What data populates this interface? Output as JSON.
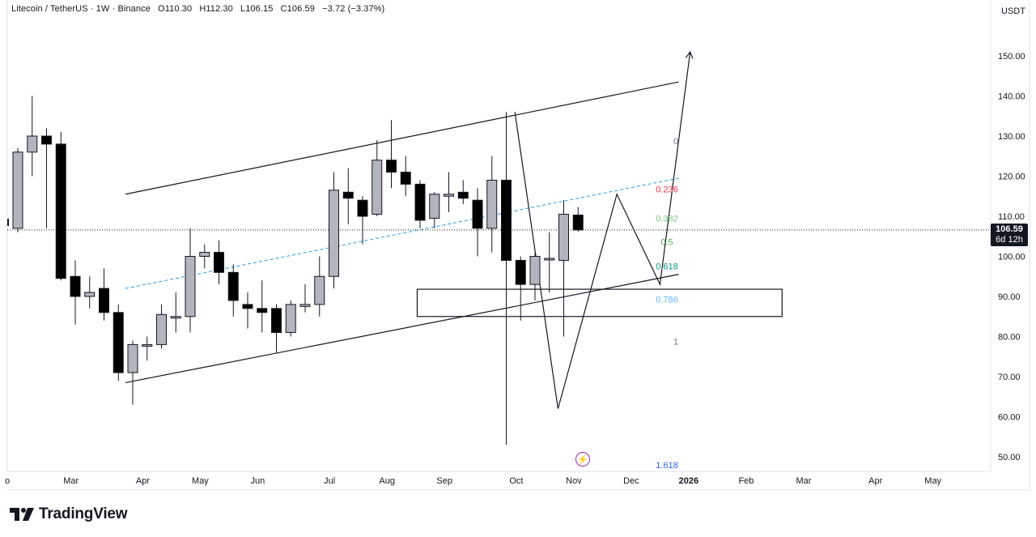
{
  "header": {
    "symbol": "Litecoin / TetherUS · 1W · Binance",
    "open": "O110.30",
    "high": "H112.30",
    "low": "L106.15",
    "close": "C106.59",
    "change": "−3.72 (−3.37%)"
  },
  "currency": "USDT",
  "price_tag": {
    "price": "106.59",
    "countdown": "6d 12h"
  },
  "brand": "TradingView",
  "colors": {
    "bull": "#b2b5be",
    "bear": "#000000",
    "line": "#131722",
    "dashed": "#2196f3",
    "fib_0": "#787b86",
    "fib_236": "#f23645",
    "fib_382": "#81c784",
    "fib_5": "#4caf50",
    "fib_618": "#089981",
    "fib_786": "#64b5f6",
    "fib_1": "#787b86",
    "fib_1618": "#2962ff",
    "flash": "#9c27b0"
  },
  "chart_data": {
    "type": "candlestick",
    "y_axis": {
      "min": 45,
      "max": 158,
      "ticks": [
        "50.00",
        "60.00",
        "70.00",
        "80.00",
        "90.00",
        "100.00",
        "110.00",
        "120.00",
        "130.00",
        "140.00",
        "150.00"
      ]
    },
    "x_axis": {
      "ticks": [
        {
          "label": "Mar",
          "week": 3.7
        },
        {
          "label": "Apr",
          "week": 8.7
        },
        {
          "label": "May",
          "week": 12.7
        },
        {
          "label": "Jun",
          "week": 16.7
        },
        {
          "label": "Jul",
          "week": 21.7
        },
        {
          "label": "Aug",
          "week": 25.7
        },
        {
          "label": "Sep",
          "week": 29.7
        },
        {
          "label": "Oct",
          "week": 34.7
        },
        {
          "label": "Nov",
          "week": 38.7
        },
        {
          "label": "Dec",
          "week": 42.7
        },
        {
          "label": "2026",
          "week": 46.7
        },
        {
          "label": "Feb",
          "week": 50.7
        },
        {
          "label": "Mar",
          "week": 54.7
        },
        {
          "label": "Apr",
          "week": 59.7
        },
        {
          "label": "May",
          "week": 63.7
        }
      ],
      "edge_label": "o"
    },
    "last_price": 106.59,
    "candles": [
      {
        "o": 107,
        "h": 127,
        "l": 106,
        "c": 126
      },
      {
        "o": 126,
        "h": 140,
        "l": 120,
        "c": 130
      },
      {
        "o": 130,
        "h": 132,
        "l": 107,
        "c": 128
      },
      {
        "o": 128,
        "h": 131,
        "l": 94,
        "c": 94.5
      },
      {
        "o": 95,
        "h": 99,
        "l": 83,
        "c": 90
      },
      {
        "o": 90,
        "h": 95,
        "l": 87,
        "c": 91
      },
      {
        "o": 92,
        "h": 97,
        "l": 84,
        "c": 86
      },
      {
        "o": 86,
        "h": 88,
        "l": 69,
        "c": 71
      },
      {
        "o": 71,
        "h": 79,
        "l": 63,
        "c": 78
      },
      {
        "o": 78,
        "h": 80,
        "l": 74,
        "c": 78
      },
      {
        "o": 78,
        "h": 88,
        "l": 77,
        "c": 85.5
      },
      {
        "o": 85,
        "h": 91,
        "l": 81,
        "c": 85
      },
      {
        "o": 85,
        "h": 107,
        "l": 81,
        "c": 100
      },
      {
        "o": 100,
        "h": 103,
        "l": 97,
        "c": 101
      },
      {
        "o": 101,
        "h": 104,
        "l": 93,
        "c": 96
      },
      {
        "o": 96,
        "h": 98,
        "l": 85,
        "c": 89
      },
      {
        "o": 88,
        "h": 91,
        "l": 82,
        "c": 87
      },
      {
        "o": 87,
        "h": 94,
        "l": 81,
        "c": 86
      },
      {
        "o": 87,
        "h": 88,
        "l": 76,
        "c": 81
      },
      {
        "o": 81,
        "h": 89,
        "l": 80,
        "c": 88
      },
      {
        "o": 87.5,
        "h": 93,
        "l": 86,
        "c": 88
      },
      {
        "o": 88,
        "h": 100,
        "l": 85,
        "c": 95
      },
      {
        "o": 95,
        "h": 121,
        "l": 92,
        "c": 116.5
      },
      {
        "o": 116,
        "h": 122,
        "l": 108,
        "c": 114.5
      },
      {
        "o": 114,
        "h": 115,
        "l": 103,
        "c": 110
      },
      {
        "o": 110.5,
        "h": 129,
        "l": 110,
        "c": 124
      },
      {
        "o": 124,
        "h": 134,
        "l": 117,
        "c": 121
      },
      {
        "o": 121,
        "h": 125,
        "l": 115,
        "c": 118
      },
      {
        "o": 118,
        "h": 119,
        "l": 107,
        "c": 109
      },
      {
        "o": 109.5,
        "h": 116,
        "l": 107,
        "c": 115.5
      },
      {
        "o": 115,
        "h": 121,
        "l": 111,
        "c": 115.5
      },
      {
        "o": 116,
        "h": 119,
        "l": 113,
        "c": 114.5
      },
      {
        "o": 114,
        "h": 117,
        "l": 100,
        "c": 107
      },
      {
        "o": 107,
        "h": 125,
        "l": 101,
        "c": 119
      },
      {
        "o": 119,
        "h": 136,
        "l": 53,
        "c": 99
      },
      {
        "o": 99,
        "h": 100,
        "l": 84,
        "c": 93
      },
      {
        "o": 93,
        "h": 101,
        "l": 89,
        "c": 100
      },
      {
        "o": 99.5,
        "h": 106,
        "l": 91,
        "c": 99.5
      },
      {
        "o": 99,
        "h": 114,
        "l": 80,
        "c": 110.5
      },
      {
        "o": 110.3,
        "h": 112.3,
        "l": 106.15,
        "c": 106.59
      }
    ],
    "fib_levels": [
      {
        "label": "0",
        "price": 128.8,
        "color": "#787b86"
      },
      {
        "label": "0.236",
        "price": 116.8,
        "color": "#f23645"
      },
      {
        "label": "0.382",
        "price": 109.5,
        "color": "#81c784"
      },
      {
        "label": "0.5",
        "price": 103.6,
        "color": "#4caf50"
      },
      {
        "label": "0.618",
        "price": 97.6,
        "color": "#089981"
      },
      {
        "label": "0.786",
        "price": 89.3,
        "color": "#64b5f6"
      },
      {
        "label": "1",
        "price": 78.8,
        "color": "#787b86"
      },
      {
        "label": "1.618",
        "price": 48.0,
        "color": "#2962ff"
      }
    ],
    "channel_upper": [
      {
        "week": 7.5,
        "price": 115.5
      },
      {
        "week": 46,
        "price": 143.5
      }
    ],
    "channel_lower": [
      {
        "week": 7.5,
        "price": 68.5
      },
      {
        "week": 46,
        "price": 95.5
      }
    ],
    "channel_mid_dashed": [
      {
        "week": 7.5,
        "price": 92
      },
      {
        "week": 46,
        "price": 119.5
      }
    ],
    "zone_box": {
      "week_start": 27.8,
      "week_end": 53.2,
      "price_top": 91.8,
      "price_bottom": 85
    },
    "projection_path": [
      {
        "week": 34.6,
        "price": 136
      },
      {
        "week": 37.6,
        "price": 62
      },
      {
        "week": 41.7,
        "price": 115.5
      },
      {
        "week": 44.7,
        "price": 93
      },
      {
        "week": 46.8,
        "price": 151
      }
    ]
  }
}
